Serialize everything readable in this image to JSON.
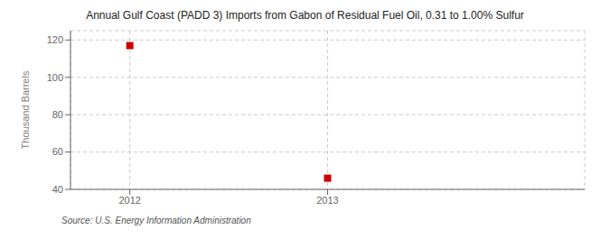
{
  "chart_data": {
    "type": "scatter",
    "title": "Annual Gulf Coast (PADD 3) Imports from Gabon of Residual Fuel Oil, 0.31 to 1.00% Sulfur",
    "ylabel": "Thousand Barrels",
    "annotations": [
      "Source: U.S. Energy Information Administration"
    ],
    "x": [
      2012,
      2013
    ],
    "values": [
      117,
      46
    ],
    "xlim": [
      2011.7,
      2014.3
    ],
    "xticks": [
      2012,
      2013
    ],
    "ylim": [
      40,
      125
    ],
    "yticks": [
      40,
      60,
      80,
      100,
      120
    ],
    "color": "#cc0000",
    "marker": "square",
    "grid": true
  }
}
